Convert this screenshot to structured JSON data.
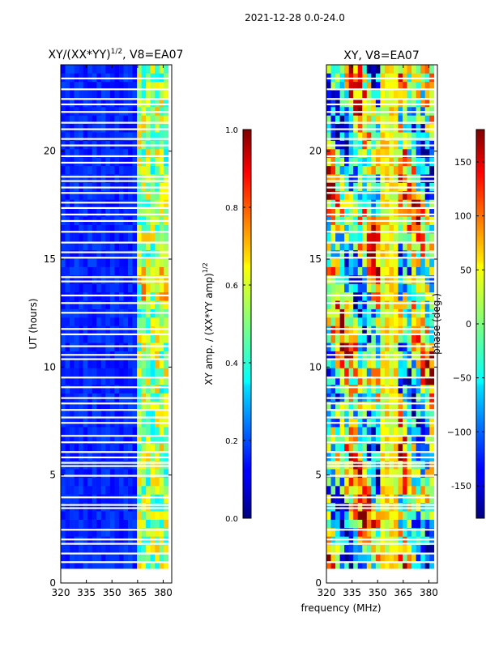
{
  "figure": {
    "suptitle": "2021-12-28 0.0-24.0"
  },
  "chart_data": [
    {
      "type": "heatmap",
      "title": "XY/(XX*YY)1/2, V8=EA07",
      "title_parts": {
        "main": "XY/(XX*YY)",
        "sup": "1/2",
        "tail": ", V8=EA07"
      },
      "xlabel": "",
      "ylabel": "UT (hours)",
      "xlim": [
        320,
        385
      ],
      "ylim": [
        0,
        24
      ],
      "xticks": [
        "320",
        "335",
        "350",
        "365",
        "380"
      ],
      "yticks": [
        "0",
        "5",
        "10",
        "15",
        "20"
      ],
      "colorbar": {
        "label": "XY amp. / (XX*YY amp)1/2",
        "label_parts": {
          "main": "XY amp. / (XX*YY amp)",
          "sup": "1/2"
        },
        "range": [
          0.0,
          1.0
        ],
        "ticks": [
          "0.0",
          "0.2",
          "0.4",
          "0.6",
          "0.8",
          "1.0"
        ],
        "colormap": "jet"
      },
      "data_extent": {
        "freq_range": [
          320,
          383
        ],
        "time_range": [
          0.6,
          24
        ]
      },
      "gaps_hours": [
        0.6,
        0.95,
        1.35,
        1.8,
        2.0,
        2.45,
        3.45,
        3.6,
        3.95,
        4.95,
        5.4,
        5.55,
        5.8,
        6.05,
        6.5,
        6.8,
        7.4,
        7.65,
        8.0,
        8.3,
        8.55,
        9.05,
        9.5,
        10.35,
        10.55,
        10.95,
        11.5,
        11.75,
        12.5,
        12.95,
        13.3,
        13.95,
        14.15,
        15.05,
        15.3,
        15.75,
        16.25,
        16.75,
        17.05,
        17.35,
        17.6,
        18.05,
        18.3,
        18.6,
        18.8,
        19.45,
        19.75,
        20.25,
        20.55,
        21.0,
        21.3,
        21.8,
        22.15,
        22.4,
        22.85,
        23.35
      ],
      "high_band_MHz": [
        363,
        383
      ]
    },
    {
      "type": "heatmap",
      "title": "XY, V8=EA07",
      "xlabel": "frequency (MHz)",
      "ylabel": "",
      "xlim": [
        320,
        385
      ],
      "ylim": [
        0,
        24
      ],
      "xticks": [
        "320",
        "335",
        "350",
        "365",
        "380"
      ],
      "yticks": [
        "0",
        "5",
        "10",
        "15",
        "20"
      ],
      "colorbar": {
        "label": "phase (deg.)",
        "range": [
          -180,
          180
        ],
        "ticks": [
          "-150",
          "−100",
          "−50",
          "0",
          "50",
          "100",
          "150"
        ],
        "tick_values": [
          -150,
          -100,
          -50,
          0,
          50,
          100,
          150
        ],
        "colormap": "jet"
      },
      "data_extent": {
        "freq_range": [
          320,
          383
        ],
        "time_range": [
          0.6,
          24
        ]
      },
      "gaps_hours": [
        0.6,
        0.95,
        1.35,
        1.8,
        2.0,
        2.45,
        3.45,
        3.6,
        3.95,
        4.95,
        5.4,
        5.55,
        5.8,
        6.05,
        6.5,
        6.8,
        7.4,
        7.65,
        8.0,
        8.3,
        8.55,
        9.05,
        9.5,
        10.35,
        10.55,
        10.95,
        11.5,
        11.75,
        12.5,
        12.95,
        13.3,
        13.95,
        14.15,
        15.05,
        15.3,
        15.75,
        16.25,
        16.75,
        17.05,
        17.35,
        17.6,
        18.05,
        18.3,
        18.6,
        18.8,
        19.45,
        19.75,
        20.25,
        20.55,
        21.0,
        21.3,
        21.8,
        22.15,
        22.4,
        22.85,
        23.35
      ]
    }
  ]
}
